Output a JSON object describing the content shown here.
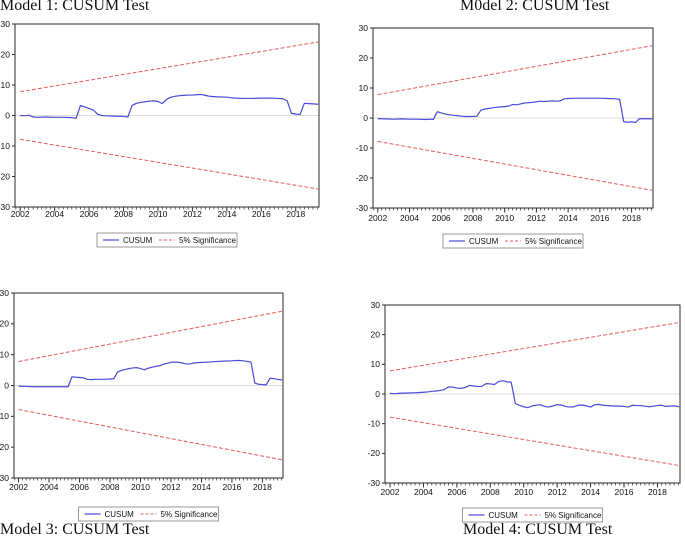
{
  "page": {
    "background": "#ffffff"
  },
  "colors": {
    "cusum": "#4a4ad8",
    "significance": "#e45c5c",
    "zero_line": "#dcdcdc",
    "frame": "#2a2a2a",
    "tick_text": "#111111",
    "legend_border": "#999999"
  },
  "legend": {
    "cusum_label": "CUSUM",
    "significance_label": "5% Significance"
  },
  "axis": {
    "x_domain": [
      2001.7,
      2019.35
    ],
    "y_domain": [
      -30,
      30
    ],
    "x_ticks": [
      2002,
      2004,
      2006,
      2008,
      2010,
      2012,
      2014,
      2016,
      2018
    ],
    "y_ticks": [
      30,
      20,
      10,
      0,
      -10,
      -20,
      -30
    ],
    "minor_tick_step": 0.25
  },
  "chart_data": [
    {
      "type": "line",
      "title": "Model 1: CUSUM Test",
      "xlabel": "",
      "ylabel": "",
      "ylim": [
        -30,
        30
      ],
      "grid": false,
      "legend_entries": [
        "CUSUM",
        "5% Significance"
      ],
      "bounds": {
        "upper": [
          [
            2002,
            7.8
          ],
          [
            2019.3,
            24.1
          ]
        ],
        "lower": [
          [
            2002,
            -7.8
          ],
          [
            2019.3,
            -24.1
          ]
        ]
      },
      "cusum": [
        [
          2002.0,
          0.0
        ],
        [
          2002.25,
          -0.1
        ],
        [
          2002.5,
          0.1
        ],
        [
          2002.75,
          -0.5
        ],
        [
          2003.0,
          -0.6
        ],
        [
          2003.5,
          -0.5
        ],
        [
          2004.0,
          -0.6
        ],
        [
          2004.5,
          -0.6
        ],
        [
          2005.0,
          -0.7
        ],
        [
          2005.25,
          -0.9
        ],
        [
          2005.5,
          3.3
        ],
        [
          2005.75,
          2.8
        ],
        [
          2006.0,
          2.3
        ],
        [
          2006.25,
          1.8
        ],
        [
          2006.5,
          0.4
        ],
        [
          2006.75,
          0.0
        ],
        [
          2007.0,
          -0.1
        ],
        [
          2007.5,
          -0.2
        ],
        [
          2008.0,
          -0.3
        ],
        [
          2008.25,
          -0.5
        ],
        [
          2008.5,
          3.3
        ],
        [
          2008.75,
          4.0
        ],
        [
          2009.0,
          4.3
        ],
        [
          2009.25,
          4.5
        ],
        [
          2009.5,
          4.7
        ],
        [
          2009.75,
          4.8
        ],
        [
          2010.0,
          4.6
        ],
        [
          2010.25,
          3.9
        ],
        [
          2010.5,
          5.3
        ],
        [
          2010.75,
          6.0
        ],
        [
          2011.0,
          6.3
        ],
        [
          2011.25,
          6.5
        ],
        [
          2011.5,
          6.6
        ],
        [
          2011.75,
          6.7
        ],
        [
          2012.0,
          6.7
        ],
        [
          2012.25,
          6.8
        ],
        [
          2012.5,
          6.9
        ],
        [
          2012.75,
          6.6
        ],
        [
          2013.0,
          6.3
        ],
        [
          2013.25,
          6.2
        ],
        [
          2013.5,
          6.1
        ],
        [
          2014.0,
          6.0
        ],
        [
          2014.25,
          5.8
        ],
        [
          2014.5,
          5.7
        ],
        [
          2015.0,
          5.6
        ],
        [
          2015.5,
          5.6
        ],
        [
          2016.0,
          5.7
        ],
        [
          2016.5,
          5.7
        ],
        [
          2017.0,
          5.6
        ],
        [
          2017.25,
          5.5
        ],
        [
          2017.5,
          4.8
        ],
        [
          2017.75,
          0.7
        ],
        [
          2018.0,
          0.5
        ],
        [
          2018.25,
          0.3
        ],
        [
          2018.5,
          4.0
        ],
        [
          2018.75,
          3.9
        ],
        [
          2019.0,
          3.8
        ],
        [
          2019.3,
          3.7
        ]
      ]
    },
    {
      "type": "line",
      "title": "M0del 2: CUSUM Test",
      "xlabel": "",
      "ylabel": "",
      "ylim": [
        -30,
        30
      ],
      "grid": false,
      "legend_entries": [
        "CUSUM",
        "5% Significance"
      ],
      "bounds": {
        "upper": [
          [
            2002,
            7.8
          ],
          [
            2019.3,
            24.1
          ]
        ],
        "lower": [
          [
            2002,
            -7.8
          ],
          [
            2019.3,
            -24.1
          ]
        ]
      },
      "cusum": [
        [
          2002.0,
          -0.2
        ],
        [
          2002.5,
          -0.3
        ],
        [
          2003.0,
          -0.4
        ],
        [
          2003.5,
          -0.3
        ],
        [
          2004.0,
          -0.4
        ],
        [
          2004.5,
          -0.4
        ],
        [
          2005.0,
          -0.5
        ],
        [
          2005.25,
          -0.4
        ],
        [
          2005.5,
          -0.5
        ],
        [
          2005.75,
          2.1
        ],
        [
          2006.0,
          1.7
        ],
        [
          2006.25,
          1.3
        ],
        [
          2006.5,
          1.1
        ],
        [
          2006.75,
          0.9
        ],
        [
          2007.0,
          0.8
        ],
        [
          2007.25,
          0.6
        ],
        [
          2007.5,
          0.5
        ],
        [
          2007.75,
          0.5
        ],
        [
          2008.0,
          0.5
        ],
        [
          2008.25,
          0.6
        ],
        [
          2008.5,
          2.6
        ],
        [
          2008.75,
          3.0
        ],
        [
          2009.0,
          3.2
        ],
        [
          2009.25,
          3.4
        ],
        [
          2009.5,
          3.6
        ],
        [
          2009.75,
          3.7
        ],
        [
          2010.0,
          3.8
        ],
        [
          2010.25,
          4.0
        ],
        [
          2010.5,
          4.5
        ],
        [
          2010.75,
          4.4
        ],
        [
          2011.0,
          4.7
        ],
        [
          2011.25,
          5.0
        ],
        [
          2011.5,
          5.1
        ],
        [
          2011.75,
          5.2
        ],
        [
          2012.0,
          5.4
        ],
        [
          2012.25,
          5.6
        ],
        [
          2012.5,
          5.5
        ],
        [
          2012.75,
          5.6
        ],
        [
          2013.0,
          5.7
        ],
        [
          2013.25,
          5.6
        ],
        [
          2013.5,
          5.7
        ],
        [
          2013.75,
          6.4
        ],
        [
          2014.0,
          6.5
        ],
        [
          2014.5,
          6.6
        ],
        [
          2015.0,
          6.6
        ],
        [
          2015.5,
          6.6
        ],
        [
          2016.0,
          6.6
        ],
        [
          2016.5,
          6.5
        ],
        [
          2017.0,
          6.4
        ],
        [
          2017.25,
          6.2
        ],
        [
          2017.5,
          -1.2
        ],
        [
          2017.75,
          -1.4
        ],
        [
          2018.0,
          -1.3
        ],
        [
          2018.25,
          -1.5
        ],
        [
          2018.5,
          -0.2
        ],
        [
          2018.75,
          -0.3
        ],
        [
          2019.0,
          -0.2
        ],
        [
          2019.3,
          -0.3
        ]
      ]
    },
    {
      "type": "line",
      "title": "Model 3: CUSUM Test",
      "xlabel": "",
      "ylabel": "",
      "ylim": [
        -30,
        30
      ],
      "grid": false,
      "legend_entries": [
        "CUSUM",
        "5% Significance"
      ],
      "bounds": {
        "upper": [
          [
            2002,
            7.8
          ],
          [
            2019.3,
            24.1
          ]
        ],
        "lower": [
          [
            2002,
            -7.8
          ],
          [
            2019.3,
            -24.1
          ]
        ]
      },
      "cusum": [
        [
          2002.0,
          -0.2
        ],
        [
          2002.5,
          -0.3
        ],
        [
          2003.0,
          -0.4
        ],
        [
          2003.5,
          -0.4
        ],
        [
          2004.0,
          -0.4
        ],
        [
          2004.5,
          -0.4
        ],
        [
          2005.0,
          -0.4
        ],
        [
          2005.25,
          -0.4
        ],
        [
          2005.5,
          2.8
        ],
        [
          2005.75,
          2.7
        ],
        [
          2006.0,
          2.6
        ],
        [
          2006.25,
          2.5
        ],
        [
          2006.5,
          2.0
        ],
        [
          2006.75,
          1.9
        ],
        [
          2007.0,
          2.0
        ],
        [
          2007.5,
          2.0
        ],
        [
          2008.0,
          2.1
        ],
        [
          2008.25,
          2.2
        ],
        [
          2008.5,
          4.4
        ],
        [
          2008.75,
          4.9
        ],
        [
          2009.0,
          5.2
        ],
        [
          2009.25,
          5.5
        ],
        [
          2009.5,
          5.7
        ],
        [
          2009.75,
          5.8
        ],
        [
          2010.0,
          5.5
        ],
        [
          2010.25,
          5.1
        ],
        [
          2010.5,
          5.6
        ],
        [
          2010.75,
          5.9
        ],
        [
          2011.0,
          6.2
        ],
        [
          2011.25,
          6.4
        ],
        [
          2011.5,
          6.9
        ],
        [
          2011.75,
          7.2
        ],
        [
          2012.0,
          7.5
        ],
        [
          2012.25,
          7.6
        ],
        [
          2012.5,
          7.5
        ],
        [
          2012.75,
          7.3
        ],
        [
          2013.0,
          7.0
        ],
        [
          2013.25,
          7.0
        ],
        [
          2013.5,
          7.3
        ],
        [
          2013.75,
          7.4
        ],
        [
          2014.0,
          7.5
        ],
        [
          2014.5,
          7.6
        ],
        [
          2015.0,
          7.8
        ],
        [
          2015.5,
          7.9
        ],
        [
          2016.0,
          8.0
        ],
        [
          2016.25,
          8.1
        ],
        [
          2016.5,
          8.1
        ],
        [
          2016.75,
          8.0
        ],
        [
          2017.0,
          7.8
        ],
        [
          2017.25,
          7.6
        ],
        [
          2017.5,
          0.8
        ],
        [
          2017.75,
          0.4
        ],
        [
          2018.0,
          0.3
        ],
        [
          2018.25,
          0.2
        ],
        [
          2018.5,
          2.4
        ],
        [
          2018.75,
          2.2
        ],
        [
          2019.0,
          2.0
        ],
        [
          2019.3,
          1.8
        ]
      ]
    },
    {
      "type": "line",
      "title": "Model 4: CUSUM Test",
      "xlabel": "",
      "ylabel": "",
      "ylim": [
        -30,
        30
      ],
      "grid": false,
      "legend_entries": [
        "CUSUM",
        "5% Significance"
      ],
      "bounds": {
        "upper": [
          [
            2002,
            7.8
          ],
          [
            2019.3,
            24.1
          ]
        ],
        "lower": [
          [
            2002,
            -7.8
          ],
          [
            2019.3,
            -24.1
          ]
        ]
      },
      "cusum": [
        [
          2002.0,
          0.2
        ],
        [
          2002.25,
          0.1
        ],
        [
          2002.5,
          0.2
        ],
        [
          2002.75,
          0.3
        ],
        [
          2003.0,
          0.3
        ],
        [
          2003.25,
          0.4
        ],
        [
          2003.5,
          0.4
        ],
        [
          2003.75,
          0.5
        ],
        [
          2004.0,
          0.6
        ],
        [
          2004.25,
          0.7
        ],
        [
          2004.5,
          0.9
        ],
        [
          2004.75,
          1.0
        ],
        [
          2005.0,
          1.2
        ],
        [
          2005.25,
          1.5
        ],
        [
          2005.5,
          2.4
        ],
        [
          2005.75,
          2.3
        ],
        [
          2006.0,
          2.0
        ],
        [
          2006.25,
          1.9
        ],
        [
          2006.5,
          2.2
        ],
        [
          2006.75,
          2.9
        ],
        [
          2007.0,
          2.7
        ],
        [
          2007.25,
          2.5
        ],
        [
          2007.5,
          2.6
        ],
        [
          2007.75,
          3.5
        ],
        [
          2008.0,
          3.4
        ],
        [
          2008.25,
          3.2
        ],
        [
          2008.5,
          4.2
        ],
        [
          2008.75,
          4.5
        ],
        [
          2009.0,
          4.1
        ],
        [
          2009.25,
          4.0
        ],
        [
          2009.5,
          -3.2
        ],
        [
          2009.75,
          -3.8
        ],
        [
          2010.0,
          -4.3
        ],
        [
          2010.25,
          -4.6
        ],
        [
          2010.5,
          -4.0
        ],
        [
          2010.75,
          -3.8
        ],
        [
          2011.0,
          -3.6
        ],
        [
          2011.25,
          -4.2
        ],
        [
          2011.5,
          -4.4
        ],
        [
          2011.75,
          -4.0
        ],
        [
          2012.0,
          -3.6
        ],
        [
          2012.25,
          -3.7
        ],
        [
          2012.5,
          -4.2
        ],
        [
          2012.75,
          -4.4
        ],
        [
          2013.0,
          -4.3
        ],
        [
          2013.25,
          -3.8
        ],
        [
          2013.5,
          -3.7
        ],
        [
          2013.75,
          -4.0
        ],
        [
          2014.0,
          -4.4
        ],
        [
          2014.25,
          -3.6
        ],
        [
          2014.5,
          -3.5
        ],
        [
          2014.75,
          -3.8
        ],
        [
          2015.0,
          -3.9
        ],
        [
          2015.25,
          -4.0
        ],
        [
          2015.5,
          -4.1
        ],
        [
          2015.75,
          -4.1
        ],
        [
          2016.0,
          -4.2
        ],
        [
          2016.25,
          -4.4
        ],
        [
          2016.5,
          -3.8
        ],
        [
          2016.75,
          -3.9
        ],
        [
          2017.0,
          -3.9
        ],
        [
          2017.25,
          -4.1
        ],
        [
          2017.5,
          -4.3
        ],
        [
          2017.75,
          -4.1
        ],
        [
          2018.0,
          -3.9
        ],
        [
          2018.25,
          -3.8
        ],
        [
          2018.5,
          -4.2
        ],
        [
          2018.75,
          -4.1
        ],
        [
          2019.0,
          -4.0
        ],
        [
          2019.3,
          -4.3
        ]
      ]
    }
  ]
}
